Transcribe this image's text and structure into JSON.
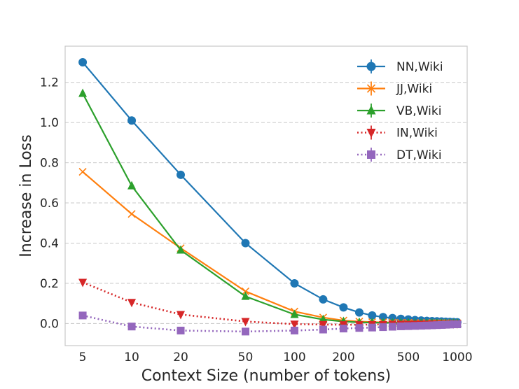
{
  "chart_data": {
    "type": "line",
    "title": "",
    "xlabel": "Context Size (number of tokens)",
    "ylabel": "Increase in Loss",
    "xscale": "log",
    "xlim": [
      3.9,
      1150
    ],
    "ylim": [
      -0.11,
      1.38
    ],
    "xticks": [
      5,
      10,
      20,
      50,
      100,
      200,
      500,
      1000
    ],
    "xtick_labels": [
      "5",
      "10",
      "20",
      "50",
      "100",
      "200",
      "500",
      "1000"
    ],
    "yticks": [
      0.0,
      0.2,
      0.4,
      0.6,
      0.8,
      1.0,
      1.2
    ],
    "ytick_labels": [
      "0.0",
      "0.2",
      "0.4",
      "0.6",
      "0.8",
      "1.0",
      "1.2"
    ],
    "grid": "horizontal dashed",
    "legend_position": "top-right",
    "series": [
      {
        "name": "NN,Wiki",
        "color": "#1f77b4",
        "linestyle": "solid",
        "marker": "circle",
        "x": [
          5,
          10,
          20,
          50,
          100,
          150,
          200,
          250,
          300,
          350,
          400,
          450,
          500,
          550,
          600,
          650,
          700,
          750,
          800,
          850,
          900,
          950,
          1000
        ],
        "values": [
          1.3,
          1.01,
          0.74,
          0.4,
          0.2,
          0.12,
          0.08,
          0.055,
          0.04,
          0.032,
          0.027,
          0.023,
          0.02,
          0.017,
          0.015,
          0.013,
          0.012,
          0.011,
          0.01,
          0.009,
          0.008,
          0.007,
          0.006
        ]
      },
      {
        "name": "JJ,Wiki",
        "color": "#ff7f0e",
        "linestyle": "solid",
        "marker": "x",
        "x": [
          5,
          10,
          20,
          50,
          100,
          150,
          200,
          250,
          300,
          350,
          400,
          450,
          500,
          550,
          600,
          650,
          700,
          750,
          800,
          850,
          900,
          950,
          1000
        ],
        "values": [
          0.755,
          0.545,
          0.375,
          0.16,
          0.06,
          0.03,
          0.015,
          0.01,
          0.007,
          0.006,
          0.005,
          0.004,
          0.004,
          0.003,
          0.003,
          0.003,
          0.002,
          0.002,
          0.002,
          0.002,
          0.001,
          0.001,
          0.001
        ]
      },
      {
        "name": "VB,Wiki",
        "color": "#2ca02c",
        "linestyle": "solid",
        "marker": "triangle-up",
        "x": [
          5,
          10,
          20,
          50,
          100,
          150,
          200,
          250,
          300,
          350,
          400,
          450,
          500,
          550,
          600,
          650,
          700,
          750,
          800,
          850,
          900,
          950,
          1000
        ],
        "values": [
          1.145,
          0.685,
          0.365,
          0.135,
          0.045,
          0.02,
          0.01,
          0.006,
          0.005,
          0.004,
          0.003,
          0.003,
          0.003,
          0.002,
          0.002,
          0.002,
          0.002,
          0.001,
          0.001,
          0.001,
          0.001,
          0.001,
          0.001
        ]
      },
      {
        "name": "IN,Wiki",
        "color": "#d62728",
        "linestyle": "dotted",
        "marker": "triangle-down",
        "x": [
          5,
          10,
          20,
          50,
          100,
          150,
          200,
          250,
          300,
          350,
          400,
          450,
          500,
          550,
          600,
          650,
          700,
          750,
          800,
          850,
          900,
          950,
          1000
        ],
        "values": [
          0.205,
          0.105,
          0.045,
          0.01,
          -0.003,
          -0.005,
          -0.006,
          -0.006,
          -0.005,
          -0.005,
          -0.004,
          -0.004,
          -0.004,
          -0.003,
          -0.003,
          -0.003,
          -0.002,
          -0.002,
          -0.002,
          -0.002,
          -0.001,
          -0.001,
          -0.001
        ]
      },
      {
        "name": "DT,Wiki",
        "color": "#9467bd",
        "linestyle": "dotted",
        "marker": "square",
        "x": [
          5,
          10,
          20,
          50,
          100,
          150,
          200,
          250,
          300,
          350,
          400,
          450,
          500,
          550,
          600,
          650,
          700,
          750,
          800,
          850,
          900,
          950,
          1000
        ],
        "values": [
          0.04,
          -0.015,
          -0.035,
          -0.04,
          -0.035,
          -0.03,
          -0.025,
          -0.022,
          -0.02,
          -0.018,
          -0.016,
          -0.014,
          -0.013,
          -0.012,
          -0.011,
          -0.01,
          -0.009,
          -0.008,
          -0.007,
          -0.006,
          -0.005,
          -0.004,
          -0.004
        ]
      }
    ]
  }
}
